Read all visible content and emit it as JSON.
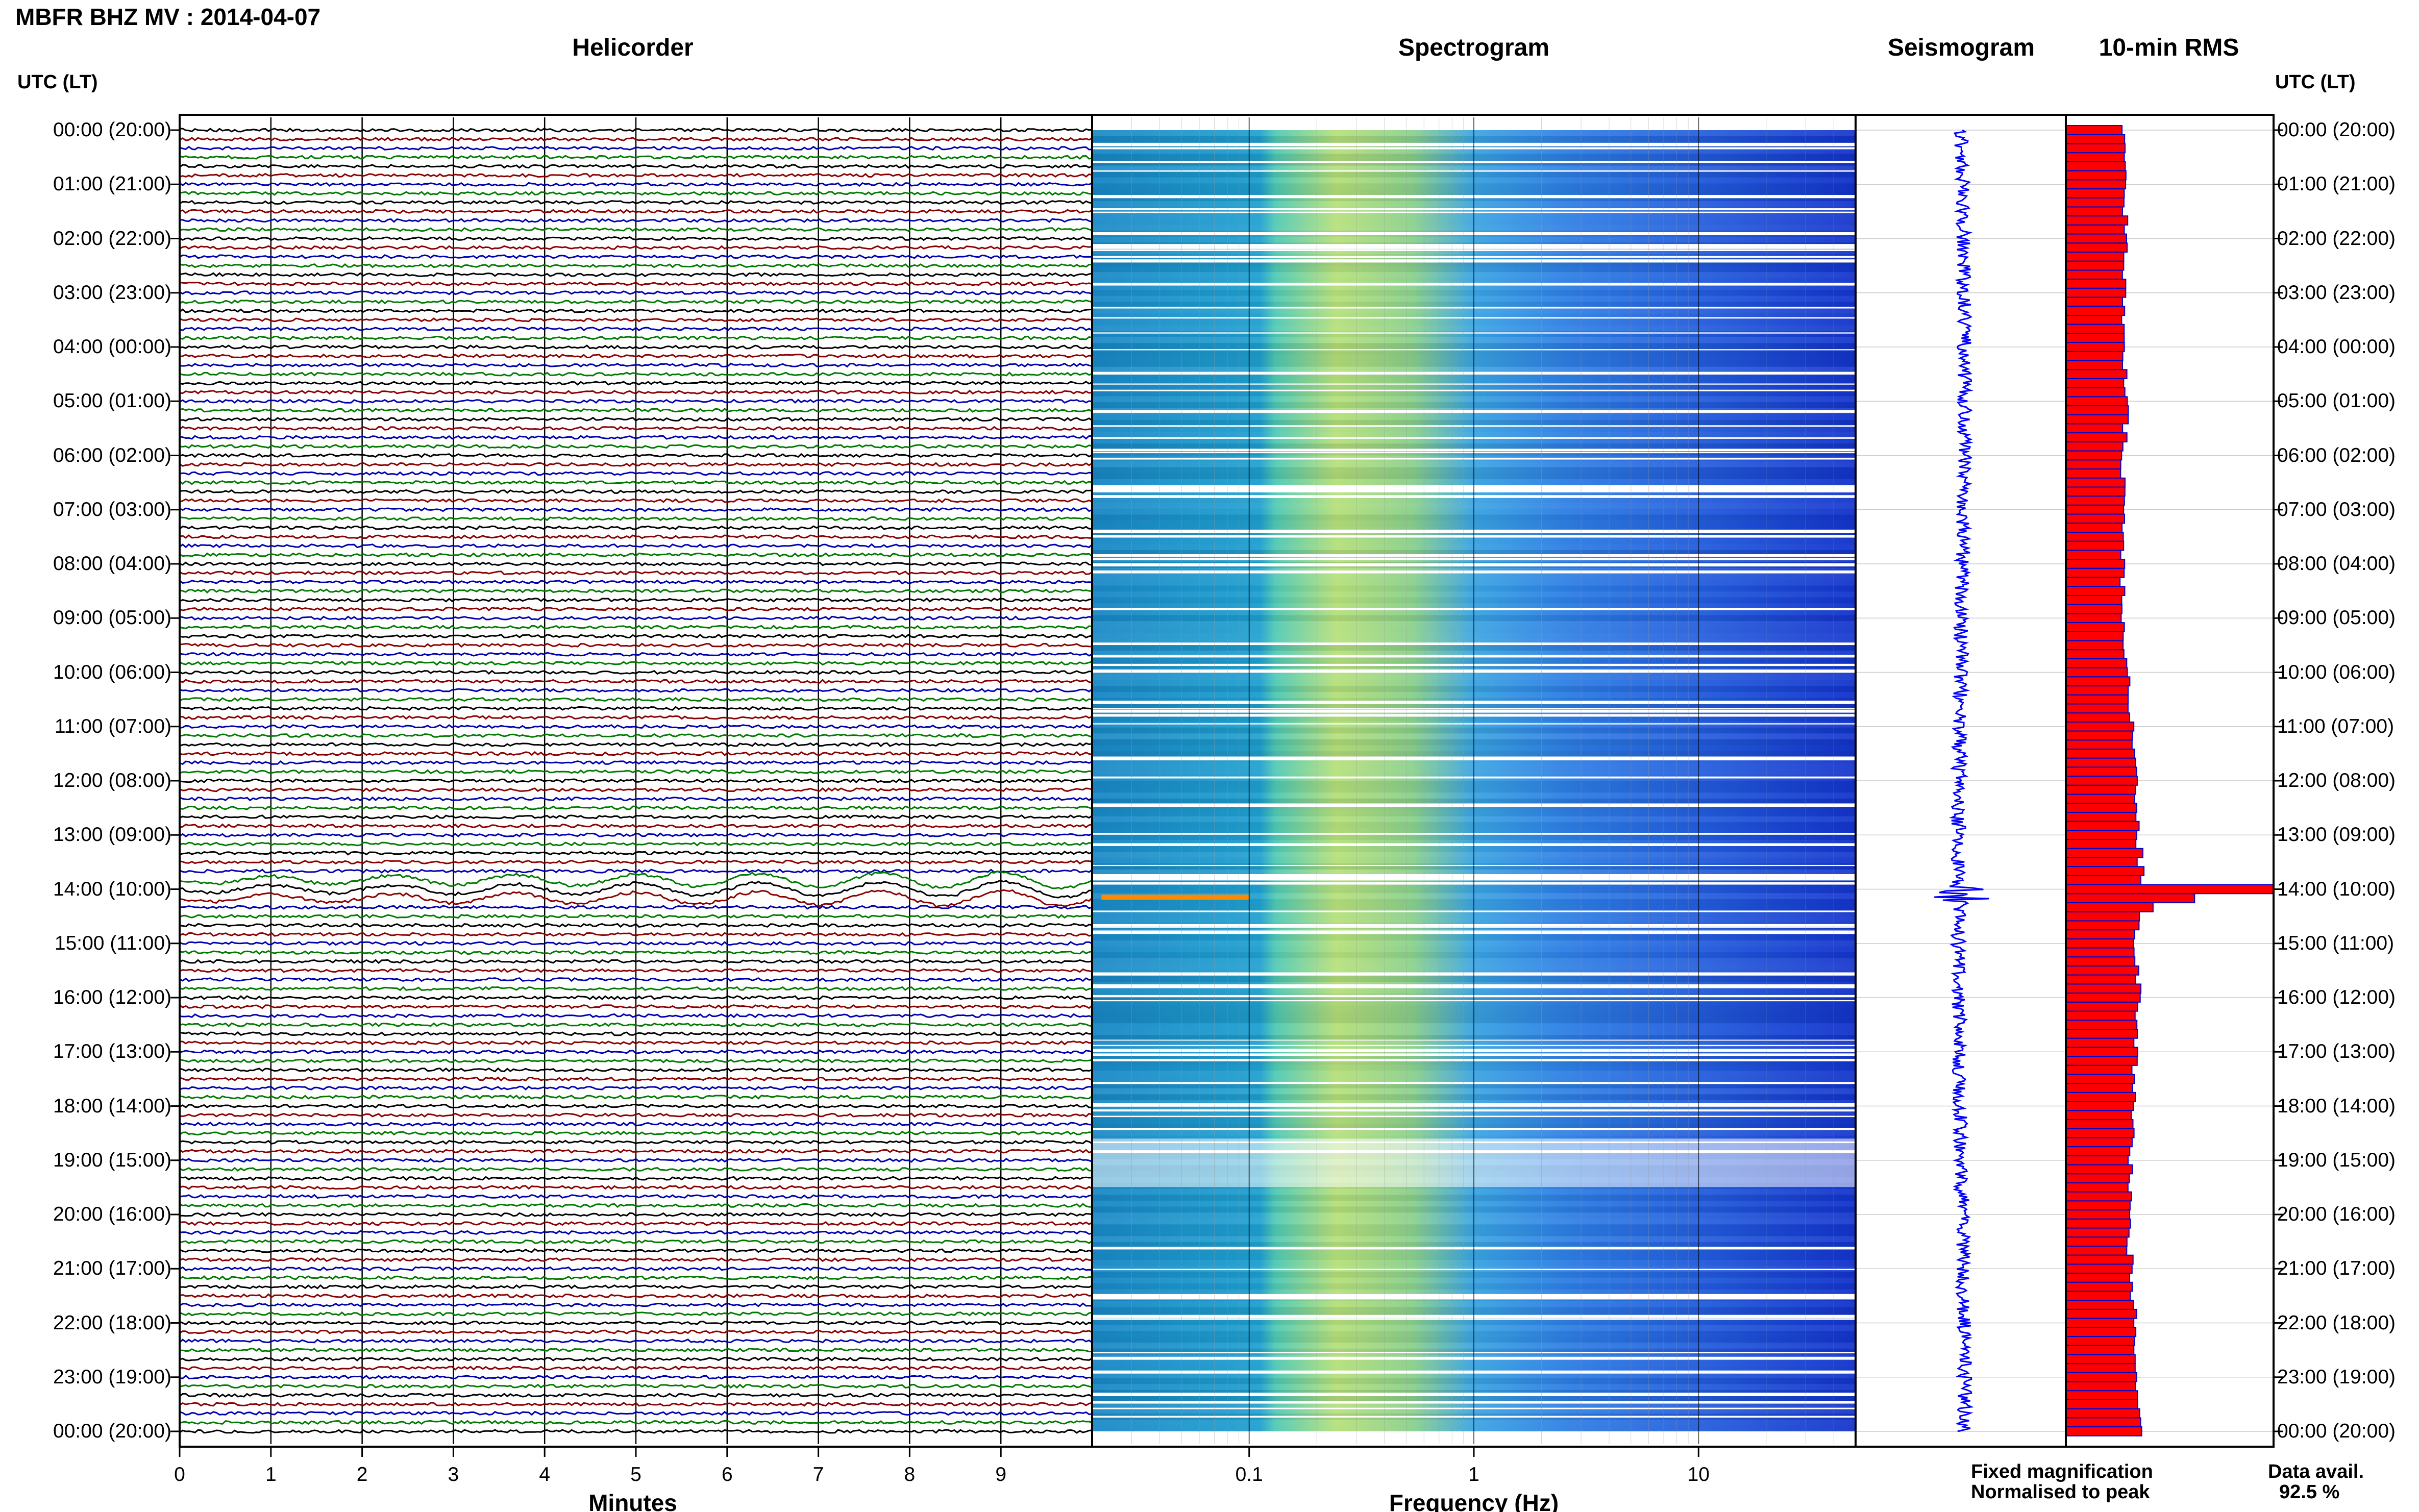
{
  "header": {
    "title": "MBFR BHZ MV : 2014-04-07"
  },
  "panels": {
    "helicorder": "Helicorder",
    "spectrogram": "Spectrogram",
    "seismogram": "Seismogram",
    "rms": "10-min RMS"
  },
  "axis_labels": {
    "utc_left": "UTC (LT)",
    "utc_right": "UTC (LT)",
    "minutes": "Minutes",
    "frequency": "Frequency (Hz)"
  },
  "time_labels": [
    "00:00 (20:00)",
    "01:00 (21:00)",
    "02:00 (22:00)",
    "03:00 (23:00)",
    "04:00 (00:00)",
    "05:00 (01:00)",
    "06:00 (02:00)",
    "07:00 (03:00)",
    "08:00 (04:00)",
    "09:00 (05:00)",
    "10:00 (06:00)",
    "11:00 (07:00)",
    "12:00 (08:00)",
    "13:00 (09:00)",
    "14:00 (10:00)",
    "15:00 (11:00)",
    "16:00 (12:00)",
    "17:00 (13:00)",
    "18:00 (14:00)",
    "19:00 (15:00)",
    "20:00 (16:00)",
    "21:00 (17:00)",
    "22:00 (18:00)",
    "23:00 (19:00)",
    "00:00 (20:00)"
  ],
  "minute_ticks": [
    "0",
    "1",
    "2",
    "3",
    "4",
    "5",
    "6",
    "7",
    "8",
    "9"
  ],
  "freq_ticks": [
    "0.1",
    "1",
    "10"
  ],
  "legend": {
    "fixed": "Fixed magnification",
    "normalised": "Normalised to peak",
    "data_avail_label": "Data avail.",
    "data_avail_value": "92.5 %"
  },
  "colors": {
    "helicorder_traces": [
      "#000000",
      "#8b0000",
      "#0000b0",
      "#007a00"
    ],
    "seismogram": "#0000ff",
    "rms_fill": "#ff0000",
    "rms_edge": "#0000cc",
    "fixed_text": "#0000ff",
    "normalised_text": "#ff0000"
  },
  "chart_data": [
    {
      "type": "line",
      "name": "helicorder",
      "title": "Helicorder",
      "xlabel": "Minutes",
      "xlim": [
        0,
        10
      ],
      "rows_per_hour": 6,
      "rows": 145,
      "event_hour_utc": 14.0
    },
    {
      "type": "heatmap",
      "name": "spectrogram",
      "title": "Spectrogram",
      "xlabel": "Frequency (Hz)",
      "xscale": "log",
      "xlim": [
        0.02,
        50
      ],
      "ylim_hours": [
        0,
        24
      ]
    },
    {
      "type": "line",
      "name": "seismogram",
      "title": "Seismogram",
      "ylim_hours": [
        0,
        24
      ],
      "event_hour_utc": 14.0
    },
    {
      "type": "bar",
      "name": "rms",
      "title": "10-min RMS",
      "orientation": "horizontal",
      "ylim_hours": [
        0,
        24
      ],
      "note": "",
      "hourly_relative_rms": [
        0.27,
        0.28,
        0.29,
        0.28,
        0.27,
        0.29,
        0.28,
        0.27,
        0.27,
        0.28,
        0.29,
        0.32,
        0.34,
        0.34,
        0.38,
        0.32,
        0.35,
        0.33,
        0.32,
        0.31,
        0.3,
        0.31,
        0.33,
        0.34,
        0.35
      ],
      "peak_hour_utc": 14.0,
      "peak_value": 1.0
    }
  ]
}
